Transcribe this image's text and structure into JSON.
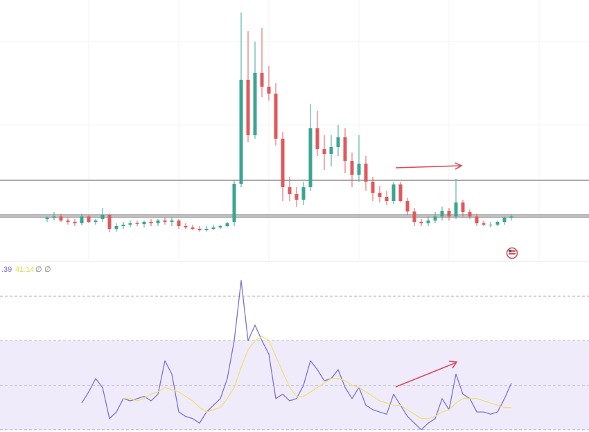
{
  "chart_data": [
    {
      "type": "candlestick",
      "open": [
        59,
        61,
        63,
        57,
        55,
        53,
        63,
        55,
        59,
        65,
        45,
        49,
        51,
        53,
        52,
        55,
        53,
        57,
        55,
        57,
        49,
        47,
        45,
        43,
        45,
        47,
        49,
        55,
        110,
        260,
        180,
        270,
        250,
        240,
        175,
        105,
        95,
        87,
        105,
        190,
        160,
        153,
        163,
        177,
        143,
        123,
        139,
        113,
        97,
        91,
        85,
        109,
        85,
        70,
        55,
        53,
        57,
        63,
        71,
        63,
        83,
        69,
        63,
        53,
        51,
        51,
        55,
        61
      ],
      "high": [
        63,
        69,
        67,
        61,
        59,
        67,
        65,
        59,
        75,
        67,
        53,
        55,
        57,
        57,
        57,
        59,
        59,
        61,
        61,
        59,
        53,
        51,
        49,
        49,
        51,
        51,
        55,
        115,
        357,
        330,
        315,
        335,
        280,
        255,
        185,
        120,
        105,
        113,
        225,
        215,
        180,
        180,
        195,
        190,
        155,
        180,
        150,
        120,
        107,
        100,
        113,
        113,
        90,
        75,
        59,
        63,
        69,
        77,
        75,
        117,
        87,
        73,
        67,
        57,
        55,
        57,
        63,
        65
      ],
      "low": [
        55,
        57,
        55,
        51,
        49,
        50,
        53,
        51,
        55,
        40,
        41,
        45,
        47,
        49,
        47,
        49,
        49,
        51,
        49,
        45,
        45,
        43,
        41,
        41,
        43,
        45,
        47,
        49,
        105,
        170,
        175,
        235,
        230,
        165,
        85,
        85,
        77,
        79,
        100,
        150,
        130,
        135,
        150,
        125,
        105,
        113,
        100,
        85,
        83,
        79,
        81,
        83,
        65,
        49,
        49,
        49,
        53,
        57,
        57,
        59,
        63,
        59,
        49,
        49,
        47,
        49,
        51,
        57
      ],
      "close": [
        61,
        63,
        57,
        55,
        53,
        63,
        55,
        57,
        65,
        45,
        49,
        51,
        53,
        52,
        55,
        53,
        57,
        55,
        57,
        49,
        47,
        45,
        43,
        45,
        47,
        49,
        53,
        110,
        260,
        180,
        270,
        250,
        240,
        175,
        105,
        95,
        87,
        105,
        190,
        160,
        153,
        163,
        177,
        143,
        123,
        139,
        113,
        97,
        91,
        85,
        109,
        85,
        70,
        55,
        53,
        57,
        63,
        71,
        63,
        83,
        69,
        63,
        53,
        51,
        51,
        55,
        61,
        63
      ],
      "up_color": "#3aa592",
      "down_color": "#e0585c",
      "ylim": [
        0,
        375
      ],
      "hlines": [
        115,
        65,
        62
      ],
      "hline_color": "#555555"
    },
    {
      "type": "line",
      "series": [
        {
          "color": "#7b6fd4",
          "values": [
            null,
            null,
            null,
            null,
            null,
            42,
            47,
            53,
            49,
            35,
            38,
            44,
            43,
            44,
            45,
            43,
            46,
            61,
            55,
            38,
            36,
            35,
            33,
            38,
            41,
            44,
            53,
            70,
            97,
            70,
            77,
            70,
            64,
            44,
            46,
            43,
            44,
            50,
            61,
            57,
            52,
            53,
            57,
            49,
            44,
            49,
            41,
            39,
            38,
            37,
            46,
            41,
            36,
            33,
            30,
            33,
            35,
            44,
            39,
            55,
            46,
            44,
            38,
            38,
            37,
            38,
            44,
            51
          ]
        },
        {
          "color": "#efe070",
          "values": [
            null,
            null,
            null,
            null,
            null,
            null,
            null,
            null,
            null,
            null,
            null,
            44,
            44,
            43,
            44,
            46,
            47,
            49,
            48,
            47,
            45,
            43,
            40,
            38,
            39,
            40,
            44,
            49,
            58,
            66,
            70,
            72,
            70,
            63,
            56,
            49,
            45,
            45,
            47,
            49,
            51,
            53,
            53,
            52,
            50,
            49,
            47,
            45,
            43,
            42,
            41,
            41,
            39,
            37,
            35,
            35,
            36,
            38,
            39,
            42,
            44,
            44,
            44,
            43,
            42,
            41,
            40,
            40
          ]
        }
      ],
      "ylim": [
        29,
        100
      ],
      "levels": [
        90,
        70,
        50,
        30
      ],
      "band": [
        30,
        70
      ],
      "band_color": "#efebfa",
      "indicator_values": [
        ".39",
        "41.14",
        "∅",
        "∅"
      ],
      "indicator_colors": [
        "#7b6fd4",
        "#e8d84a",
        "#777777",
        "#777777"
      ]
    }
  ]
}
